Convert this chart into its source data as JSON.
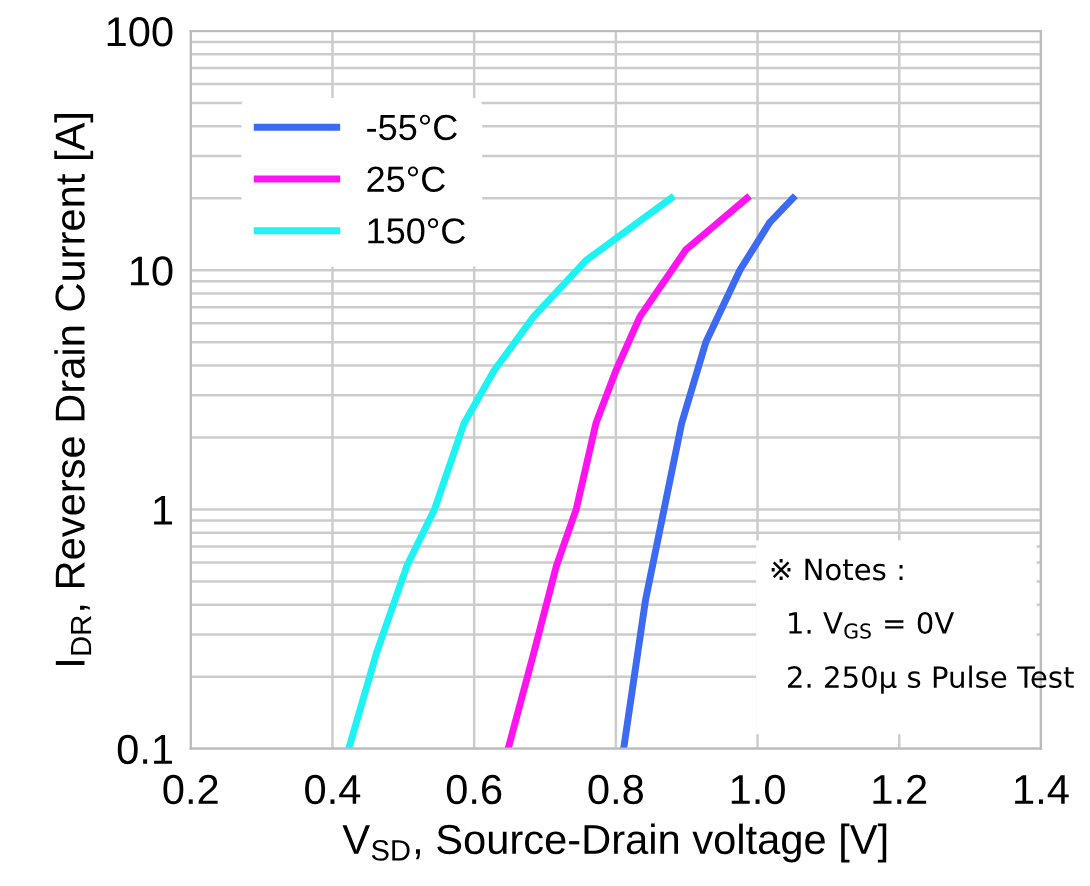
{
  "chart_data": {
    "type": "line",
    "xlabel": "V$_{SD}$, Source-Drain voltage [V]",
    "ylabel": "I$_{DR}$, Reverse Drain Current [A]",
    "log": "y",
    "xlim": [
      0.2,
      1.4
    ],
    "ylim": [
      0.1,
      100
    ],
    "xticks": [
      0.2,
      0.4,
      0.6,
      0.8,
      {
        "value": 1.0,
        "label": "1.0"
      },
      1.2,
      1.4
    ],
    "yticks": [
      0.1,
      1,
      10,
      100
    ],
    "grid": true,
    "legend": "top left",
    "marker": "none",
    "line_style": "solid",
    "annotations": [
      "※ Notes :",
      "1. V$_{GS}$ = 0V",
      "2. 250μ s Pulse Test"
    ],
    "series": [
      {
        "name": "-55°C",
        "color": "#3d6af2",
        "x": [
          0.811,
          0.842,
          0.868,
          0.893,
          0.927,
          0.975,
          1.017,
          1.05
        ],
        "values": [
          0.1,
          0.42,
          1,
          2.3,
          5,
          10,
          15.8,
          20
        ]
      },
      {
        "name": "25°C",
        "color": "#ff14f0",
        "x": [
          0.648,
          0.684,
          0.716,
          0.744,
          0.772,
          0.8,
          0.834,
          0.899,
          0.985
        ],
        "values": [
          0.1,
          0.25,
          0.58,
          1,
          2.3,
          3.8,
          6.4,
          12.2,
          20
        ]
      },
      {
        "name": "150°C",
        "color": "#1ff2f2",
        "x": [
          0.423,
          0.462,
          0.505,
          0.544,
          0.586,
          0.628,
          0.684,
          0.758,
          0.878
        ],
        "values": [
          0.1,
          0.25,
          0.58,
          1,
          2.3,
          3.8,
          6.4,
          11,
          20
        ]
      }
    ]
  }
}
